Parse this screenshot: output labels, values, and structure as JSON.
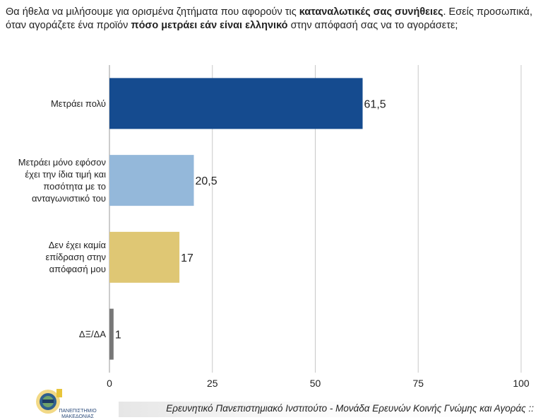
{
  "question": {
    "part1": "Θα ήθελα να μιλήσουμε για ορισμένα ζητήματα που αφορούν τις ",
    "bold1": "καταναλωτικές σας συνήθειες",
    "part2": ". Εσείς προσωπικά, όταν αγοράζετε ένα προϊόν ",
    "bold2": "πόσο μετράει εάν είναι ελληνικό",
    "part3": " στην απόφασή σας να το αγοράσετε;"
  },
  "chart_data": {
    "type": "bar",
    "orientation": "horizontal",
    "categories": [
      "Μετράει πολύ",
      "Μετράει μόνο εφόσον έχει την ίδια τιμή και ποσότητα με το ανταγωνιστικό του",
      "Δεν έχει καμία επίδραση στην απόφασή μου",
      "ΔΞ/ΔΑ"
    ],
    "category_lines": [
      [
        "Μετράει πολύ"
      ],
      [
        "Μετράει μόνο εφόσον",
        "έχει την ίδια τιμή και",
        "ποσότητα με το",
        "ανταγωνιστικό του"
      ],
      [
        "Δεν έχει καμία",
        "επίδραση στην",
        "απόφασή μου"
      ],
      [
        "ΔΞ/ΔΑ"
      ]
    ],
    "values": [
      61.5,
      20.5,
      17,
      1
    ],
    "value_labels": [
      "61,5",
      "20,5",
      "17",
      "1"
    ],
    "colors": [
      "#154b8f",
      "#94b8da",
      "#dfc774",
      "#777777"
    ],
    "xlim": [
      0,
      100
    ],
    "xticks": [
      0,
      25,
      50,
      75,
      100
    ],
    "grid": true
  },
  "footer": {
    "text": "Ερευνητικό Πανεπιστημιακό Ινστιτούτο - Μονάδα Ερευνών Κοινής Γνώμης και Αγοράς ::",
    "logo_text": "ΠΑΝΕΠΙΣΤΗΜΙΟ ΜΑΚΕΔΟΝΙΑΣ"
  }
}
